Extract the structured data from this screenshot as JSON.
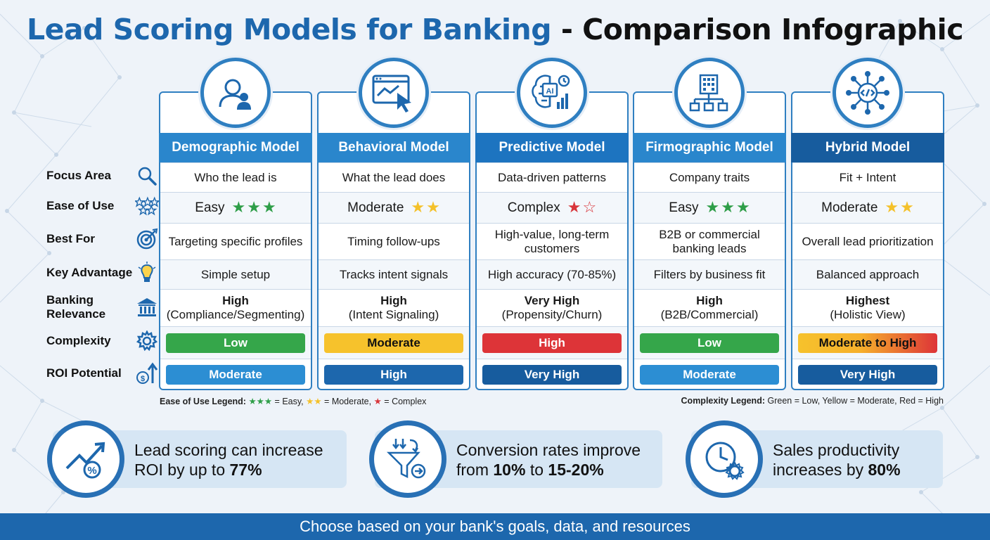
{
  "title": {
    "part1": "Lead Scoring Models for Banking",
    "part2": " - Comparison Infographic"
  },
  "row_labels": [
    {
      "label": "Focus Area",
      "icon": "magnifier-icon"
    },
    {
      "label": "Ease of Use",
      "icon": "stars-icon"
    },
    {
      "label": "Best For",
      "icon": "target-icon"
    },
    {
      "label": "Key Advantage",
      "icon": "lightbulb-icon"
    },
    {
      "label": "Banking Relevance",
      "icon": "bank-icon"
    },
    {
      "label": "Complexity",
      "icon": "gear-icon"
    },
    {
      "label": "ROI Potential",
      "icon": "growth-icon"
    }
  ],
  "models": [
    {
      "name": "Demographic Model",
      "icon": "person-icon",
      "head_color": "#2a86cc",
      "focus": "Who the lead is",
      "ease": "Easy",
      "ease_stars": 3,
      "ease_color": "#2e9e48",
      "best_for": [
        "Targeting specific profiles"
      ],
      "advantage": "Simple setup",
      "relevance_level": "High",
      "relevance_detail": "(Compliance/Segmenting)",
      "complexity": "Low",
      "complexity_color": "#35a64a",
      "complexity_text": "#ffffff",
      "roi": "Moderate",
      "roi_color": "#2c8ed3"
    },
    {
      "name": "Behavioral Model",
      "icon": "browser-cursor-icon",
      "head_color": "#2a86cc",
      "focus": "What the lead does",
      "ease": "Moderate",
      "ease_stars": 2,
      "ease_color": "#f4c12a",
      "best_for": [
        "Timing follow-ups"
      ],
      "advantage": "Tracks intent signals",
      "relevance_level": "High",
      "relevance_detail": "(Intent Signaling)",
      "complexity": "Moderate",
      "complexity_color": "#f6c22c",
      "complexity_text": "#111111",
      "roi": "High",
      "roi_color": "#1d67ad"
    },
    {
      "name": "Predictive Model",
      "icon": "ai-brain-icon",
      "head_color": "#1d74c0",
      "focus": "Data-driven patterns",
      "ease": "Complex",
      "ease_stars": 1,
      "ease_color": "#d8353a",
      "best_for": [
        "High-value, long-term",
        "customers"
      ],
      "advantage": "High accuracy (70-85%)",
      "relevance_level": "Very High",
      "relevance_detail": "(Propensity/Churn)",
      "complexity": "High",
      "complexity_color": "#dd3438",
      "complexity_text": "#ffffff",
      "roi": "Very High",
      "roi_color": "#175c9e"
    },
    {
      "name": "Firmographic Model",
      "icon": "building-org-icon",
      "head_color": "#2a86cc",
      "focus": "Company traits",
      "ease": "Easy",
      "ease_stars": 3,
      "ease_color": "#2e9e48",
      "best_for": [
        "B2B or commercial",
        "banking leads"
      ],
      "advantage": "Filters by business fit",
      "relevance_level": "High",
      "relevance_detail": "(B2B/Commercial)",
      "complexity": "Low",
      "complexity_color": "#35a64a",
      "complexity_text": "#ffffff",
      "roi": "Moderate",
      "roi_color": "#2c8ed3"
    },
    {
      "name": "Hybrid Model",
      "icon": "network-code-icon",
      "head_color": "#175c9e",
      "focus": "Fit + Intent",
      "ease": "Moderate",
      "ease_stars": 2,
      "ease_color": "#f4c12a",
      "best_for": [
        "Overall lead prioritization"
      ],
      "advantage": "Balanced approach",
      "relevance_level": "Highest",
      "relevance_detail": "(Holistic View)",
      "complexity": "Moderate to High",
      "complexity_color": "gradient",
      "complexity_text": "#111111",
      "roi": "Very High",
      "roi_color": "#175c9e"
    }
  ],
  "legend_ease": {
    "title": "Ease of Use Legend:",
    "easy": "= Easy,",
    "moderate": "= Moderate,",
    "complex": "= Complex"
  },
  "legend_complexity": {
    "title": "Complexity Legend:",
    "text": "Green = Low, Yellow = Moderate, Red = High"
  },
  "stats": [
    {
      "icon": "trend-percent-icon",
      "line1": "Lead scoring can increase",
      "line2_pre": "ROI by up to ",
      "line2_bold": "77%",
      "line2_mid": "",
      "line2_bold2": ""
    },
    {
      "icon": "funnel-icon",
      "line1": "Conversion rates improve",
      "line2_pre": "from ",
      "line2_bold": "10%",
      "line2_mid": " to ",
      "line2_bold2": "15-20%"
    },
    {
      "icon": "clock-gear-icon",
      "line1": "Sales productivity",
      "line2_pre": "increases by ",
      "line2_bold": "80%",
      "line2_mid": "",
      "line2_bold2": ""
    }
  ],
  "footer": "Choose based on your bank's goals, data, and resources"
}
